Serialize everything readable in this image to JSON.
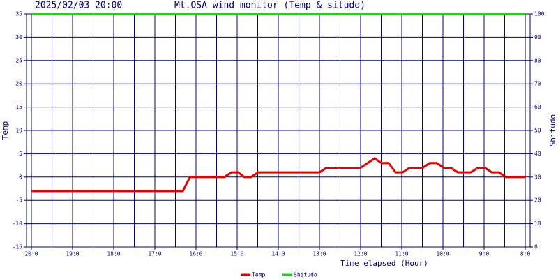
{
  "chart_data": {
    "type": "line",
    "date": "2025/02/03 20:00",
    "title": "Mt.OSA wind monitor (Temp & situdo)",
    "xlabel": "Time elapsed (Hour)",
    "ylabel": "Temp",
    "y2label": "Shitudo",
    "x": [
      0,
      3.68,
      3.85,
      4.69,
      4.86,
      5.03,
      5.17,
      5.34,
      5.51,
      7.0,
      7.17,
      8.0,
      8.17,
      8.34,
      8.51,
      8.68,
      8.85,
      9.02,
      9.19,
      9.51,
      9.68,
      9.85,
      10.02,
      10.19,
      10.36,
      10.68,
      10.85,
      11.02,
      11.19,
      11.36,
      11.53,
      12
    ],
    "series": [
      {
        "name": "Temp",
        "color": "#e60000",
        "values": [
          -3,
          -3,
          0,
          0,
          1,
          1,
          0,
          0,
          1,
          1,
          2,
          2,
          3,
          4,
          3,
          3,
          1,
          1,
          2,
          2,
          3,
          3,
          2,
          2,
          1,
          1,
          2,
          2,
          1,
          1,
          0,
          0
        ]
      },
      {
        "name": "Shitudo",
        "color": "#00e600",
        "axis": "y2",
        "values": [
          100,
          100,
          100,
          100,
          100,
          100,
          100,
          100,
          100,
          100,
          100,
          100,
          100,
          100,
          100,
          100,
          100,
          100,
          100,
          100,
          100,
          100,
          100,
          100,
          100,
          100,
          100,
          100,
          100,
          100,
          100,
          100
        ]
      }
    ],
    "xlim": [
      0,
      12
    ],
    "xticks": [
      {
        "value": 0,
        "label": "20:0"
      },
      {
        "value": 1,
        "label": "19:0"
      },
      {
        "value": 2,
        "label": "18:0"
      },
      {
        "value": 3,
        "label": "17:0"
      },
      {
        "value": 4,
        "label": "16:0"
      },
      {
        "value": 5,
        "label": "15:0"
      },
      {
        "value": 6,
        "label": "14:0"
      },
      {
        "value": 7,
        "label": "13:0"
      },
      {
        "value": 8,
        "label": "12:0"
      },
      {
        "value": 9,
        "label": "11:0"
      },
      {
        "value": 10,
        "label": "10:0"
      },
      {
        "value": 11,
        "label": "9:0"
      },
      {
        "value": 12,
        "label": "8:0"
      }
    ],
    "ylim": [
      -15,
      35
    ],
    "yticks": [
      -15,
      -10,
      -5,
      0,
      5,
      10,
      15,
      20,
      25,
      30,
      35
    ],
    "y2lim": [
      0,
      100
    ],
    "y2ticks": [
      0,
      10,
      20,
      30,
      40,
      50,
      60,
      70,
      80,
      90,
      100
    ],
    "grid": true
  }
}
